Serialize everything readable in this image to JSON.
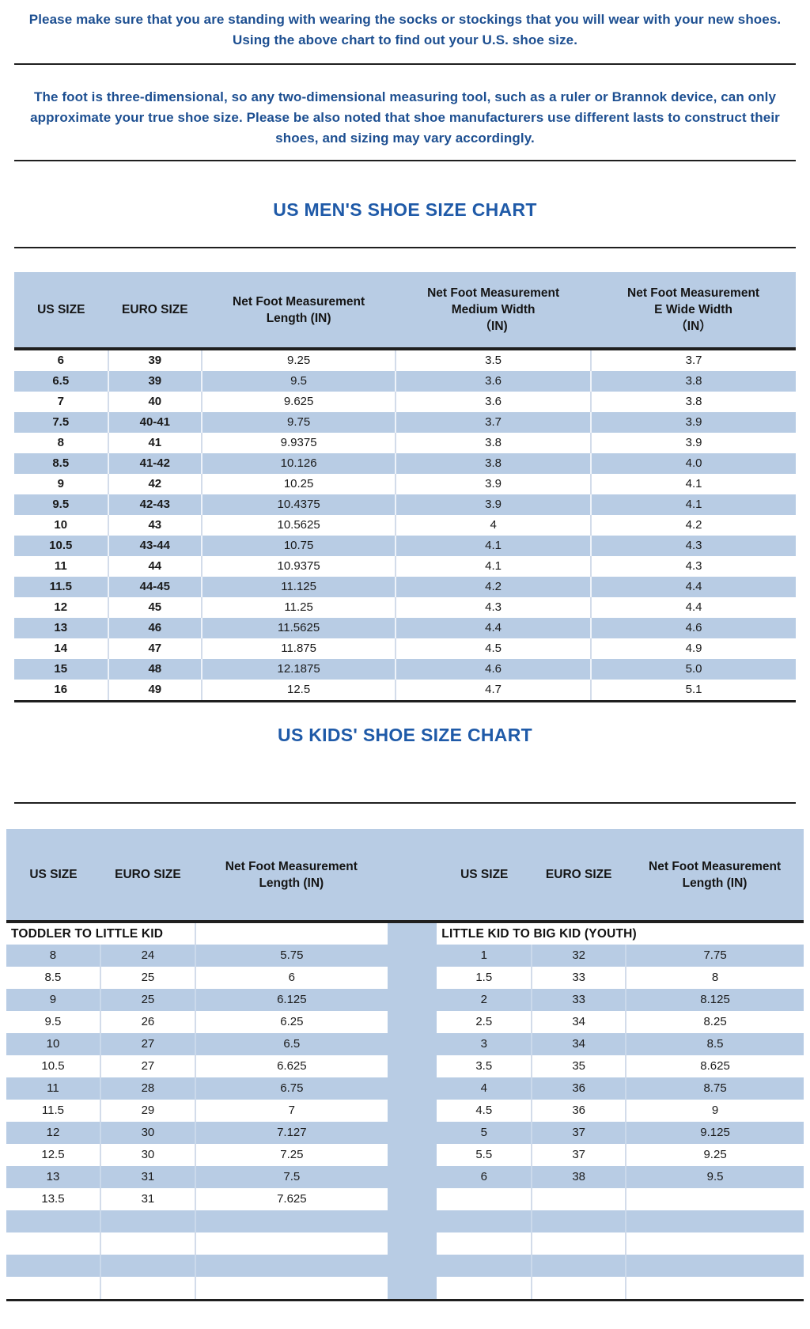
{
  "intro": "Please make sure that you are standing with wearing the socks or stockings that you will wear with your new shoes.\nUsing the above chart to find out your U.S. shoe size.",
  "note": "The foot is three-dimensional, so any two-dimensional measuring tool, such as a ruler or Brannok device, can only\napproximate your true shoe size. Please be also noted that shoe manufacturers use different lasts to construct their\nshoes, and sizing may vary accordingly.",
  "colors": {
    "row_blue": "#b8cce4",
    "paragraph_navy": "#1d4f91",
    "title_blue": "#1f5aa8",
    "rule_black": "#1f1f1f"
  },
  "mens_chart": {
    "title": "US MEN'S SHOE SIZE CHART",
    "headers": [
      "US SIZE",
      "EURO SIZE",
      "Net Foot Measurement\nLength (IN)",
      "Net Foot Measurement\nMedium Width\n（IN)",
      "Net Foot Measurement\nE Wide Width\n（IN）"
    ],
    "rows": [
      [
        "6",
        "39",
        "9.25",
        "3.5",
        "3.7"
      ],
      [
        "6.5",
        "39",
        "9.5",
        "3.6",
        "3.8"
      ],
      [
        "7",
        "40",
        "9.625",
        "3.6",
        "3.8"
      ],
      [
        "7.5",
        "40-41",
        "9.75",
        "3.7",
        "3.9"
      ],
      [
        "8",
        "41",
        "9.9375",
        "3.8",
        "3.9"
      ],
      [
        "8.5",
        "41-42",
        "10.126",
        "3.8",
        "4.0"
      ],
      [
        "9",
        "42",
        "10.25",
        "3.9",
        "4.1"
      ],
      [
        "9.5",
        "42-43",
        "10.4375",
        "3.9",
        "4.1"
      ],
      [
        "10",
        "43",
        "10.5625",
        "4",
        "4.2"
      ],
      [
        "10.5",
        "43-44",
        "10.75",
        "4.1",
        "4.3"
      ],
      [
        "11",
        "44",
        "10.9375",
        "4.1",
        "4.3"
      ],
      [
        "11.5",
        "44-45",
        "11.125",
        "4.2",
        "4.4"
      ],
      [
        "12",
        "45",
        "11.25",
        "4.3",
        "4.4"
      ],
      [
        "13",
        "46",
        "11.5625",
        "4.4",
        "4.6"
      ],
      [
        "14",
        "47",
        "11.875",
        "4.5",
        "4.9"
      ],
      [
        "15",
        "48",
        "12.1875",
        "4.6",
        "5.0"
      ],
      [
        "16",
        "49",
        "12.5",
        "4.7",
        "5.1"
      ]
    ]
  },
  "kids_chart": {
    "title": "US KIDS' SHOE SIZE CHART",
    "left_headers": [
      "US SIZE",
      "EURO SIZE",
      "Net Foot Measurement\nLength (IN)"
    ],
    "right_headers": [
      "US SIZE",
      "EURO SIZE",
      "Net Foot Measurement\nLength (IN)"
    ],
    "left_section": "TODDLER TO LITTLE KID",
    "right_section": "LITTLE KID TO BIG KID (YOUTH)",
    "rows": [
      {
        "left": [
          "8",
          "24",
          "5.75"
        ],
        "right": [
          "1",
          "32",
          "7.75"
        ]
      },
      {
        "left": [
          "8.5",
          "25",
          "6"
        ],
        "right": [
          "1.5",
          "33",
          "8"
        ]
      },
      {
        "left": [
          "9",
          "25",
          "6.125"
        ],
        "right": [
          "2",
          "33",
          "8.125"
        ]
      },
      {
        "left": [
          "9.5",
          "26",
          "6.25"
        ],
        "right": [
          "2.5",
          "34",
          "8.25"
        ]
      },
      {
        "left": [
          "10",
          "27",
          "6.5"
        ],
        "right": [
          "3",
          "34",
          "8.5"
        ]
      },
      {
        "left": [
          "10.5",
          "27",
          "6.625"
        ],
        "right": [
          "3.5",
          "35",
          "8.625"
        ]
      },
      {
        "left": [
          "11",
          "28",
          "6.75"
        ],
        "right": [
          "4",
          "36",
          "8.75"
        ]
      },
      {
        "left": [
          "11.5",
          "29",
          "7"
        ],
        "right": [
          "4.5",
          "36",
          "9"
        ]
      },
      {
        "left": [
          "12",
          "30",
          "7.127"
        ],
        "right": [
          "5",
          "37",
          "9.125"
        ]
      },
      {
        "left": [
          "12.5",
          "30",
          "7.25"
        ],
        "right": [
          "5.5",
          "37",
          "9.25"
        ]
      },
      {
        "left": [
          "13",
          "31",
          "7.5"
        ],
        "right": [
          "6",
          "38",
          "9.5"
        ]
      },
      {
        "left": [
          "13.5",
          "31",
          "7.625"
        ],
        "right": [
          "",
          "",
          ""
        ]
      },
      {
        "left": [
          "",
          "",
          ""
        ],
        "right": [
          "",
          "",
          ""
        ]
      },
      {
        "left": [
          "",
          "",
          ""
        ],
        "right": [
          "",
          "",
          ""
        ]
      },
      {
        "left": [
          "",
          "",
          ""
        ],
        "right": [
          "",
          "",
          ""
        ]
      },
      {
        "left": [
          "",
          "",
          ""
        ],
        "right": [
          "",
          "",
          ""
        ]
      }
    ]
  }
}
